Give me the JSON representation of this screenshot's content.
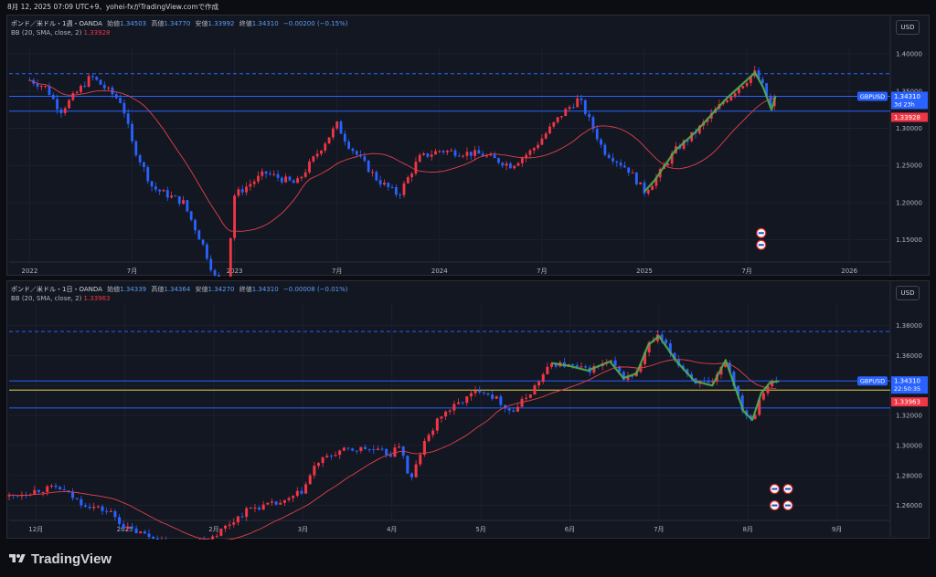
{
  "header": {
    "timestamp_text": "8月 12, 2025 07:09 UTC+9、yohei-fxがTradingView.comで作成"
  },
  "brand": {
    "name": "TradingView"
  },
  "currency_button": "USD",
  "colors": {
    "up": "#f23645",
    "down": "#2962ff",
    "bb_basis": "#e0414b",
    "hline": "#2962ff",
    "yellow_line": "#e8d44d",
    "wave": "#4caf50",
    "bg": "#131722"
  },
  "chart_data": [
    {
      "type": "candlestick",
      "timeframe": "1週",
      "legend": {
        "symbol": "ポンド／米ドル・1週・OANDA",
        "open_label": "始値",
        "open": "1.34503",
        "high_label": "高値",
        "high": "1.34770",
        "low_label": "安値",
        "low": "1.33992",
        "close_label": "終値",
        "close": "1.34310",
        "change": "−0.00200 (−0.15%)",
        "bb_label": "BB (20, SMA, close, 2)",
        "bb_value": "1.33928"
      },
      "ylim": [
        1.12,
        1.41
      ],
      "y_ticks": [
        "1.40000",
        "1.35000",
        "1.30000",
        "1.25000",
        "1.20000",
        "1.15000"
      ],
      "y_tick_values": [
        1.4,
        1.35,
        1.3,
        1.25,
        1.2,
        1.15
      ],
      "x_ticks": [
        "2022",
        "7月",
        "2023",
        "7月",
        "2024",
        "7月",
        "2025",
        "7月",
        "2026"
      ],
      "x_tick_positions": [
        0.0,
        0.5,
        1.0,
        1.5,
        2.0,
        2.5,
        3.0,
        3.5,
        4.0
      ],
      "x_range": [
        -0.1,
        4.2
      ],
      "price_label": {
        "symbol": "GBPUSD",
        "price": "1.34310",
        "countdown": "3d 23h",
        "bb": "1.33928"
      },
      "price_label_values": {
        "price": 1.3431,
        "bb": 1.33928
      },
      "hlines": [
        {
          "y": 1.3735,
          "style": "dashed"
        },
        {
          "y": 1.3431,
          "style": "solid"
        },
        {
          "y": 1.323,
          "style": "solid"
        }
      ],
      "anchors": [
        [
          0.0,
          1.365
        ],
        [
          0.08,
          1.355
        ],
        [
          0.15,
          1.323
        ],
        [
          0.3,
          1.37
        ],
        [
          0.45,
          1.335
        ],
        [
          0.5,
          1.28
        ],
        [
          0.6,
          1.22
        ],
        [
          0.75,
          1.2
        ],
        [
          0.85,
          1.14
        ],
        [
          0.95,
          1.065
        ],
        [
          1.0,
          1.21
        ],
        [
          1.15,
          1.24
        ],
        [
          1.3,
          1.225
        ],
        [
          1.4,
          1.265
        ],
        [
          1.5,
          1.305
        ],
        [
          1.55,
          1.28
        ],
        [
          1.7,
          1.23
        ],
        [
          1.8,
          1.21
        ],
        [
          1.9,
          1.26
        ],
        [
          2.0,
          1.27
        ],
        [
          2.2,
          1.265
        ],
        [
          2.35,
          1.25
        ],
        [
          2.45,
          1.27
        ],
        [
          2.6,
          1.32
        ],
        [
          2.68,
          1.34
        ],
        [
          2.75,
          1.3
        ],
        [
          2.8,
          1.27
        ],
        [
          2.92,
          1.245
        ],
        [
          3.0,
          1.215
        ],
        [
          3.05,
          1.23
        ],
        [
          3.15,
          1.27
        ],
        [
          3.25,
          1.295
        ],
        [
          3.4,
          1.34
        ],
        [
          3.5,
          1.365
        ],
        [
          3.54,
          1.375
        ],
        [
          3.58,
          1.355
        ],
        [
          3.62,
          1.325
        ],
        [
          3.64,
          1.343
        ]
      ],
      "last_x": 3.64,
      "markers": [
        {
          "x": 3.57,
          "y": 1.159,
          "label": ""
        },
        {
          "x": 3.57,
          "y": 1.143,
          "label": ""
        }
      ]
    },
    {
      "type": "candlestick",
      "timeframe": "1日",
      "legend": {
        "symbol": "ポンド／米ドル・1日・OANDA",
        "open_label": "始値",
        "open": "1.34339",
        "high_label": "高値",
        "high": "1.34364",
        "low_label": "安値",
        "low": "1.34270",
        "close_label": "終値",
        "close": "1.34310",
        "change": "−0.00008 (−0.01%)",
        "bb_label": "BB (20, SMA, close, 2)",
        "bb_value": "1.33963"
      },
      "ylim": [
        1.25,
        1.395
      ],
      "y_ticks": [
        "1.38000",
        "1.36000",
        "1.34000",
        "1.32000",
        "1.30000",
        "1.28000",
        "1.26000"
      ],
      "y_tick_values": [
        1.38,
        1.36,
        1.34,
        1.32,
        1.3,
        1.28,
        1.26
      ],
      "x_ticks": [
        "12月",
        "2025",
        "2月",
        "3月",
        "4月",
        "5月",
        "6月",
        "7月",
        "8月",
        "9月"
      ],
      "x_tick_positions": [
        0.0,
        1.0,
        2.0,
        3.0,
        4.0,
        5.0,
        6.0,
        7.0,
        8.0,
        9.0
      ],
      "x_range": [
        -0.3,
        9.6
      ],
      "price_label": {
        "symbol": "GBPUSD",
        "price": "1.34310",
        "countdown": "22:50:35",
        "bb": "1.33963"
      },
      "price_label_values": {
        "price": 1.3431,
        "bb": 1.33963
      },
      "hlines": [
        {
          "y": 1.376,
          "style": "dashed"
        },
        {
          "y": 1.3431,
          "style": "solid"
        },
        {
          "y": 1.337,
          "style": "solid-yellow"
        },
        {
          "y": 1.325,
          "style": "solid"
        }
      ],
      "anchors": [
        [
          -0.3,
          1.266
        ],
        [
          0.0,
          1.27
        ],
        [
          0.25,
          1.272
        ],
        [
          0.5,
          1.262
        ],
        [
          0.85,
          1.255
        ],
        [
          1.0,
          1.245
        ],
        [
          1.25,
          1.24
        ],
        [
          1.6,
          1.232
        ],
        [
          2.0,
          1.24
        ],
        [
          2.4,
          1.258
        ],
        [
          2.8,
          1.262
        ],
        [
          3.0,
          1.27
        ],
        [
          3.15,
          1.288
        ],
        [
          3.4,
          1.296
        ],
        [
          3.7,
          1.298
        ],
        [
          4.0,
          1.294
        ],
        [
          4.1,
          1.302
        ],
        [
          4.2,
          1.274
        ],
        [
          4.35,
          1.3
        ],
        [
          4.55,
          1.32
        ],
        [
          4.8,
          1.33
        ],
        [
          5.0,
          1.338
        ],
        [
          5.2,
          1.33
        ],
        [
          5.35,
          1.322
        ],
        [
          5.55,
          1.335
        ],
        [
          5.8,
          1.355
        ],
        [
          6.0,
          1.353
        ],
        [
          6.2,
          1.35
        ],
        [
          6.45,
          1.356
        ],
        [
          6.6,
          1.345
        ],
        [
          6.75,
          1.348
        ],
        [
          6.88,
          1.367
        ],
        [
          7.0,
          1.373
        ],
        [
          7.2,
          1.356
        ],
        [
          7.4,
          1.343
        ],
        [
          7.6,
          1.34
        ],
        [
          7.75,
          1.357
        ],
        [
          7.95,
          1.323
        ],
        [
          8.05,
          1.317
        ],
        [
          8.15,
          1.335
        ],
        [
          8.25,
          1.342
        ],
        [
          8.35,
          1.343
        ]
      ],
      "last_x": 8.35,
      "markers": [
        {
          "x": 8.3,
          "y": 1.271,
          "label": ""
        },
        {
          "x": 8.45,
          "y": 1.271,
          "label": ""
        },
        {
          "x": 8.3,
          "y": 1.26,
          "label": ""
        },
        {
          "x": 8.45,
          "y": 1.26,
          "label": ""
        }
      ]
    }
  ]
}
